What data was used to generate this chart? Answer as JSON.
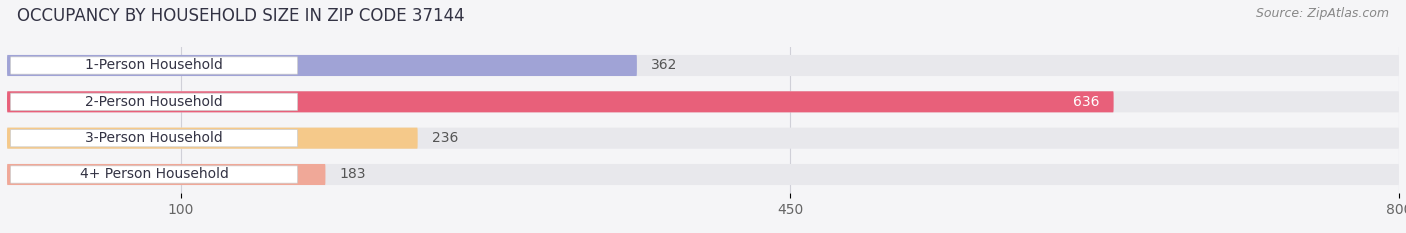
{
  "title": "OCCUPANCY BY HOUSEHOLD SIZE IN ZIP CODE 37144",
  "source": "Source: ZipAtlas.com",
  "categories": [
    "1-Person Household",
    "2-Person Household",
    "3-Person Household",
    "4+ Person Household"
  ],
  "values": [
    362,
    636,
    236,
    183
  ],
  "bar_colors": [
    "#a0a3d6",
    "#e8607a",
    "#f5c98a",
    "#f0a898"
  ],
  "bar_bg_color": "#e8e8ec",
  "xlim": [
    0,
    800
  ],
  "xticks": [
    100,
    450,
    800
  ],
  "value_label_color_outside": "#555555",
  "value_label_color_inside": "#ffffff",
  "background_color": "#f5f5f7",
  "title_color": "#333344",
  "source_color": "#888888",
  "grid_color": "#d0d0d8",
  "title_fontsize": 12,
  "source_fontsize": 9,
  "tick_fontsize": 10,
  "bar_label_fontsize": 10,
  "category_fontsize": 10
}
